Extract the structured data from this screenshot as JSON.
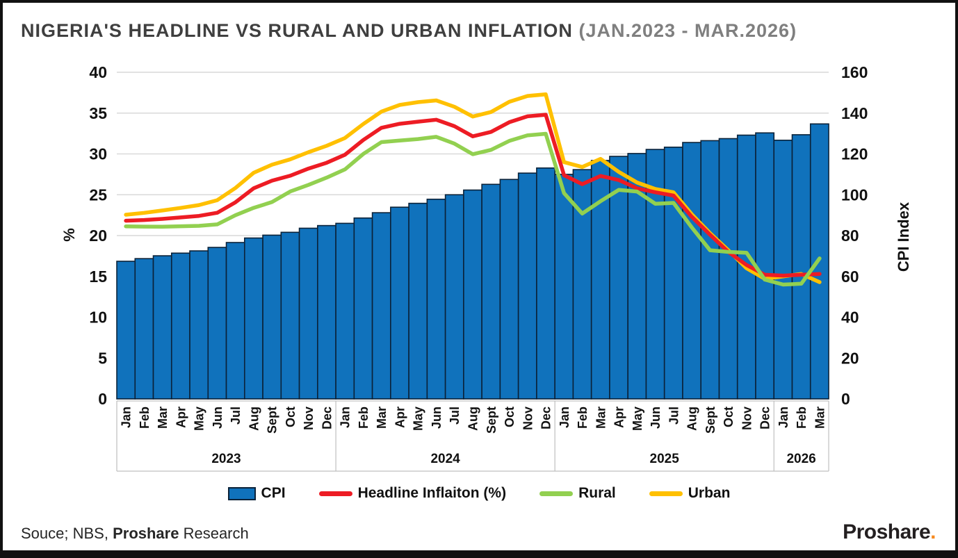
{
  "title": {
    "main": "NIGERIA'S HEADLINE VS RURAL AND URBAN INFLATION",
    "period": "(JAN.2023 - MAR.2026)"
  },
  "footer": {
    "source_prefix": "Souce; NBS, ",
    "source_brand": "Proshare",
    "source_suffix": " Research",
    "logo_text": "Proshare",
    "logo_dot": "."
  },
  "colors": {
    "bar_fill": "#1072BC",
    "bar_border": "#0B2239",
    "headline": "#ED1C24",
    "rural": "#92D050",
    "urban": "#FFC000",
    "gridline": "#D9D9D9",
    "axis_line": "#BFBFBF",
    "title_dark": "#3F3F3F",
    "title_gray": "#7F7F7F",
    "logo_dot": "#F6891F"
  },
  "legend": [
    {
      "label": "CPI",
      "swatch": "bar",
      "color": "#1072BC"
    },
    {
      "label": "Headline Inflaiton (%)",
      "swatch": "line",
      "color": "#ED1C24"
    },
    {
      "label": "Rural",
      "swatch": "line",
      "color": "#92D050"
    },
    {
      "label": "Urban",
      "swatch": "line",
      "color": "#FFC000"
    }
  ],
  "chart_data": {
    "type": "combo bar + line, dual axis",
    "years": [
      {
        "label": "2023",
        "months": [
          "Jan",
          "Feb",
          "Mar",
          "Apr",
          "May",
          "Jun",
          "Jul",
          "Aug",
          "Sept",
          "Oct",
          "Nov",
          "Dec"
        ]
      },
      {
        "label": "2024",
        "months": [
          "Jan",
          "Feb",
          "Mar",
          "Apr",
          "May",
          "Jun",
          "Jul",
          "Aug",
          "Sept",
          "Oct",
          "Nov",
          "Dec"
        ]
      },
      {
        "label": "2025",
        "months": [
          "Jan",
          "Feb",
          "Mar",
          "Apr",
          "May",
          "Jun",
          "Jul",
          "Aug",
          "Sept",
          "Oct",
          "Nov",
          "Dec"
        ]
      },
      {
        "label": "2026",
        "months": [
          "Jan",
          "Feb",
          "Mar"
        ]
      }
    ],
    "left_axis": {
      "title": "%",
      "min": 0,
      "max": 40,
      "step": 5
    },
    "right_axis": {
      "title": "CPI Index",
      "min": 0,
      "max": 160,
      "step": 20
    },
    "grid": true,
    "legend_position": "bottom",
    "bar_series": {
      "name": "CPI",
      "axis": "right",
      "values": [
        67.4,
        68.7,
        70.1,
        71.4,
        72.5,
        74.2,
        76.6,
        78.8,
        80.2,
        81.6,
        83.6,
        84.9,
        86.0,
        88.6,
        91.2,
        93.9,
        95.8,
        97.8,
        100.0,
        102.3,
        105.1,
        107.5,
        110.6,
        113.1,
        110.0,
        112.3,
        116.8,
        118.8,
        120.2,
        122.2,
        123.3,
        125.6,
        126.5,
        127.5,
        129.2,
        130.3,
        126.7,
        129.4,
        134.7
      ]
    },
    "line_series": [
      {
        "name": "Headline Inflaiton (%)",
        "axis": "left",
        "color": "#ED1C24",
        "values": [
          21.82,
          21.91,
          22.04,
          22.22,
          22.41,
          22.79,
          24.08,
          25.8,
          26.72,
          27.33,
          28.2,
          28.92,
          29.9,
          31.7,
          33.2,
          33.69,
          33.95,
          34.19,
          33.4,
          32.15,
          32.7,
          33.88,
          34.6,
          34.8,
          27.4,
          26.3,
          27.3,
          26.8,
          25.8,
          25.3,
          24.9,
          22.3,
          20.1,
          18.0,
          16.4,
          15.2,
          15.1,
          15.2,
          15.3
        ]
      },
      {
        "name": "Rural",
        "axis": "left",
        "color": "#92D050",
        "values": [
          21.13,
          21.1,
          21.09,
          21.14,
          21.19,
          21.37,
          22.49,
          23.4,
          24.1,
          25.4,
          26.2,
          27.1,
          28.1,
          29.99,
          31.45,
          31.64,
          31.82,
          32.09,
          31.26,
          29.97,
          30.49,
          31.59,
          32.27,
          32.47,
          25.2,
          22.7,
          24.2,
          25.6,
          25.4,
          23.9,
          24.0,
          21.0,
          18.2,
          18.0,
          17.9,
          14.6,
          14.0,
          14.1,
          17.2
        ]
      },
      {
        "name": "Urban",
        "axis": "left",
        "color": "#FFC000",
        "values": [
          22.55,
          22.78,
          23.07,
          23.39,
          23.74,
          24.33,
          25.83,
          27.69,
          28.68,
          29.34,
          30.21,
          31.0,
          31.95,
          33.66,
          35.18,
          36.0,
          36.34,
          36.55,
          35.77,
          34.58,
          35.13,
          36.38,
          37.1,
          37.29,
          29.0,
          28.4,
          29.4,
          27.8,
          26.5,
          25.7,
          25.3,
          22.6,
          20.3,
          18.2,
          16.0,
          14.7,
          15.0,
          15.3,
          14.3
        ]
      }
    ]
  }
}
